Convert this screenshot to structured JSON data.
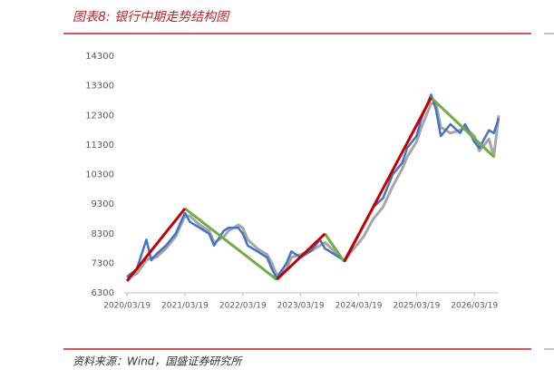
{
  "chart_data": {
    "type": "line",
    "title": "图表8: 银行中期走势结构图",
    "source": "资料来源：Wind，国盛证券研究所",
    "xlim": [
      "2020/03/01",
      "2026/08/19"
    ],
    "xticks": [
      "2020/03/19",
      "2021/03/19",
      "2022/03/19",
      "2023/03/19",
      "2024/03/19",
      "2025/03/19",
      "2026/03/19"
    ],
    "ylim": [
      6300,
      14300
    ],
    "yticks": [
      6300,
      7300,
      8300,
      9300,
      10300,
      11300,
      12300,
      13300,
      14300
    ],
    "series": [
      {
        "color": "#a6a6a6",
        "width": 3,
        "x": [
          "2020/03/19",
          "2020/05/19",
          "2020/07/19",
          "2020/08/19",
          "2020/09/19",
          "2020/11/19",
          "2021/01/19",
          "2021/03/19",
          "2021/04/19",
          "2021/06/19",
          "2021/08/19",
          "2021/09/19",
          "2021/11/19",
          "2021/12/19",
          "2022/02/19",
          "2022/03/19",
          "2022/04/19",
          "2022/06/19",
          "2022/08/19",
          "2022/09/19",
          "2022/10/19",
          "2022/12/19",
          "2023/01/19",
          "2023/03/19",
          "2023/05/19",
          "2023/07/19",
          "2023/08/19",
          "2023/10/19",
          "2023/11/19",
          "2023/12/19",
          "2024/02/19",
          "2024/04/19",
          "2024/06/19",
          "2024/08/19",
          "2024/10/19",
          "2024/12/19",
          "2025/01/19",
          "2025/03/19",
          "2025/04/19",
          "2025/06/19",
          "2025/07/19",
          "2025/08/19",
          "2025/10/19",
          "2025/12/19",
          "2026/01/19",
          "2026/03/19",
          "2026/04/19",
          "2026/06/19",
          "2026/07/19",
          "2026/08/19"
        ],
        "values": [
          6800,
          6950,
          7400,
          7500,
          7500,
          7800,
          8200,
          8900,
          8900,
          8600,
          8400,
          8000,
          8200,
          8400,
          8600,
          8500,
          8100,
          7800,
          7600,
          7300,
          6900,
          7100,
          7500,
          7600,
          7700,
          7900,
          8000,
          7700,
          7500,
          7400,
          7800,
          8200,
          8800,
          9200,
          9900,
          10500,
          10900,
          11400,
          11900,
          12700,
          12700,
          11900,
          11700,
          11800,
          11900,
          11600,
          11100,
          11500,
          10900,
          12300
        ]
      },
      {
        "color": "#4472c4",
        "width": 2.5,
        "x": [
          "2020/03/19",
          "2020/05/19",
          "2020/07/19",
          "2020/08/19",
          "2020/09/19",
          "2020/11/19",
          "2021/01/19",
          "2021/03/19",
          "2021/04/19",
          "2021/06/19",
          "2021/08/19",
          "2021/09/19",
          "2021/11/19",
          "2021/12/19",
          "2022/02/19",
          "2022/03/19",
          "2022/04/19",
          "2022/06/19",
          "2022/08/19",
          "2022/09/19",
          "2022/10/19",
          "2022/12/19",
          "2023/01/19",
          "2023/03/19",
          "2023/05/19",
          "2023/07/19",
          "2023/08/19",
          "2023/10/19",
          "2023/11/19",
          "2023/12/19",
          "2024/02/19",
          "2024/04/19",
          "2024/06/19",
          "2024/08/19",
          "2024/10/19",
          "2024/12/19",
          "2025/01/19",
          "2025/03/19",
          "2025/04/19",
          "2025/06/19",
          "2025/07/19",
          "2025/08/19",
          "2025/10/19",
          "2025/12/19",
          "2026/01/19",
          "2026/03/19",
          "2026/04/19",
          "2026/06/19",
          "2026/07/19",
          "2026/08/19"
        ],
        "values": [
          6850,
          7100,
          8100,
          7400,
          7600,
          7900,
          8300,
          9000,
          8700,
          8500,
          8300,
          7900,
          8400,
          8500,
          8500,
          8300,
          7900,
          7700,
          7500,
          7100,
          6800,
          7300,
          7700,
          7500,
          7700,
          8100,
          7800,
          7600,
          7500,
          7400,
          8000,
          8600,
          9200,
          9500,
          10300,
          10700,
          11200,
          11600,
          12200,
          13000,
          12500,
          11600,
          12000,
          11700,
          12000,
          11400,
          11200,
          11800,
          11700,
          12200
        ]
      },
      {
        "color": "#70ad47",
        "width": 3,
        "x": [
          "2021/03/19",
          "2022/10/19"
        ],
        "values": [
          9150,
          6750
        ]
      },
      {
        "color": "#70ad47",
        "width": 3,
        "x": [
          "2023/08/19",
          "2023/12/19"
        ],
        "values": [
          8300,
          7350
        ]
      },
      {
        "color": "#70ad47",
        "width": 3,
        "x": [
          "2025/06/19",
          "2026/07/19"
        ],
        "values": [
          12900,
          10900
        ]
      },
      {
        "color": "#c00000",
        "width": 3,
        "x": [
          "2020/03/19",
          "2021/03/19"
        ],
        "values": [
          6700,
          9150
        ]
      },
      {
        "color": "#c00000",
        "width": 3,
        "x": [
          "2022/10/19",
          "2023/08/19"
        ],
        "values": [
          6750,
          8300
        ]
      },
      {
        "color": "#c00000",
        "width": 3,
        "x": [
          "2023/12/19",
          "2025/06/19"
        ],
        "values": [
          7350,
          12900
        ]
      }
    ]
  }
}
